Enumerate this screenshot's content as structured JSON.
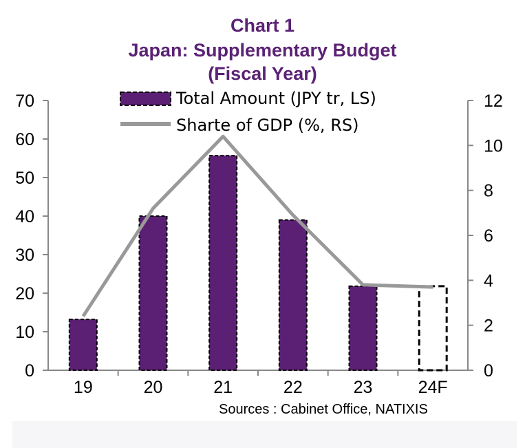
{
  "titles": {
    "line1": "Chart 1",
    "line2": "Japan: Supplementary Budget",
    "line3": "(Fiscal Year)"
  },
  "legend": {
    "bars": "Total Amount (JPY tr, LS)",
    "line": "Sharte of GDP (%, RS)"
  },
  "source": "Sources :  Cabinet Office, NATIXIS",
  "colors": {
    "title": "#5b2275",
    "bar_fill": "#5b1f74",
    "line": "#999999",
    "axis": "#888888"
  },
  "chart_data": {
    "type": "bar",
    "categories": [
      "19",
      "20",
      "21",
      "22",
      "23",
      "24F"
    ],
    "series": [
      {
        "name": "Total Amount (JPY tr, LS)",
        "type": "bar",
        "axis": "left",
        "values": [
          13.2,
          40,
          55.7,
          39,
          21.8,
          21.8
        ],
        "forecast_outline": [
          false,
          false,
          false,
          false,
          false,
          true
        ]
      },
      {
        "name": "Sharte of GDP (%, RS)",
        "type": "line",
        "axis": "right",
        "values": [
          2.4,
          7.2,
          10.4,
          6.9,
          3.8,
          3.7
        ]
      }
    ],
    "y_left": {
      "ylim": [
        0,
        70
      ],
      "ticks": [
        "0",
        "10",
        "20",
        "30",
        "40",
        "50",
        "60",
        "70"
      ]
    },
    "y_right": {
      "ylim": [
        0,
        12
      ],
      "ticks": [
        "0",
        "2",
        "4",
        "6",
        "8",
        "10",
        "12"
      ]
    },
    "legend_position": "top-center",
    "grid": false
  }
}
